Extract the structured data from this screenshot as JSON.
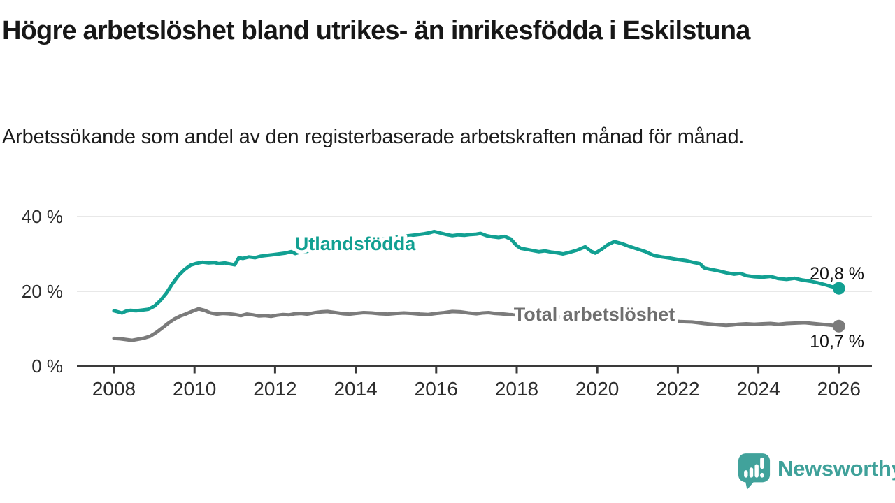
{
  "header": {
    "title": "Högre arbetslöshet bland utrikes- än inrikesfödda i Eskilstuna",
    "subtitle": "Arbetssökande som andel av den registerbaserade arbetskraften månad för månad."
  },
  "footer": {
    "brand": "Newsworthy",
    "brand_color": "#3fa19a",
    "logo_icon": "speech-bubble-bar-chart-exclamation"
  },
  "colors": {
    "foreign_born_line": "#12a092",
    "total_line": "#7b7b7b",
    "total_label": "#6f6f6f",
    "axis": "#3a3a3a",
    "gridline": "#e0e0e0",
    "tick_label": "#2d2d2d",
    "value_label": "#111111"
  },
  "chart_data": {
    "type": "line",
    "title": "Högre arbetslöshet bland utrikes- än inrikesfödda i Eskilstuna",
    "subtitle": "Arbetssökande som andel av den registerbaserade arbetskraften månad för månad.",
    "xlabel": "",
    "ylabel": "",
    "grid": "horizontal",
    "legend_position": "inline-labels",
    "x_axis": {
      "tick_years": [
        2008,
        2010,
        2012,
        2014,
        2016,
        2018,
        2020,
        2022,
        2024,
        2026
      ],
      "tick_labels": [
        "2008",
        "2010",
        "2012",
        "2014",
        "2016",
        "2018",
        "2020",
        "2022",
        "2024",
        "2026"
      ],
      "range": [
        2007.8,
        2026.9
      ]
    },
    "y_axis": {
      "tick_values": [
        0,
        20,
        40
      ],
      "tick_labels": [
        "0 %",
        "20 %",
        "40 %"
      ],
      "range": [
        0,
        42
      ],
      "unit": "%"
    },
    "series": [
      {
        "name": "Utlandsfödda",
        "color": "#12a092",
        "label_color": "#12a092",
        "end_label": "20,8 %",
        "end_value": 20.8,
        "points": [
          [
            2008.0,
            14.8
          ],
          [
            2008.1,
            14.5
          ],
          [
            2008.2,
            14.2
          ],
          [
            2008.3,
            14.7
          ],
          [
            2008.4,
            14.9
          ],
          [
            2008.55,
            14.8
          ],
          [
            2008.7,
            15.0
          ],
          [
            2008.85,
            15.2
          ],
          [
            2009.0,
            16.0
          ],
          [
            2009.15,
            17.5
          ],
          [
            2009.3,
            19.5
          ],
          [
            2009.45,
            22.0
          ],
          [
            2009.6,
            24.2
          ],
          [
            2009.75,
            25.8
          ],
          [
            2009.9,
            27.0
          ],
          [
            2010.05,
            27.5
          ],
          [
            2010.2,
            27.8
          ],
          [
            2010.35,
            27.6
          ],
          [
            2010.5,
            27.7
          ],
          [
            2010.6,
            27.4
          ],
          [
            2010.75,
            27.6
          ],
          [
            2010.9,
            27.3
          ],
          [
            2011.0,
            27.1
          ],
          [
            2011.1,
            29.0
          ],
          [
            2011.2,
            28.8
          ],
          [
            2011.35,
            29.2
          ],
          [
            2011.5,
            29.0
          ],
          [
            2011.65,
            29.4
          ],
          [
            2011.8,
            29.6
          ],
          [
            2011.95,
            29.8
          ],
          [
            2012.1,
            30.0
          ],
          [
            2012.25,
            30.2
          ],
          [
            2012.4,
            30.6
          ],
          [
            2012.5,
            30.1
          ],
          [
            2012.6,
            30.4
          ],
          [
            2012.8,
            30.7
          ],
          [
            2013.0,
            31.2
          ],
          [
            2013.25,
            31.6
          ],
          [
            2013.5,
            32.0
          ],
          [
            2013.75,
            32.4
          ],
          [
            2014.0,
            32.9
          ],
          [
            2014.25,
            33.3
          ],
          [
            2014.5,
            33.7
          ],
          [
            2014.75,
            34.1
          ],
          [
            2015.0,
            34.5
          ],
          [
            2015.25,
            34.8
          ],
          [
            2015.5,
            35.1
          ],
          [
            2015.7,
            35.4
          ],
          [
            2015.85,
            35.7
          ],
          [
            2015.95,
            36.0
          ],
          [
            2016.1,
            35.6
          ],
          [
            2016.25,
            35.2
          ],
          [
            2016.4,
            34.9
          ],
          [
            2016.55,
            35.1
          ],
          [
            2016.7,
            35.0
          ],
          [
            2016.85,
            35.2
          ],
          [
            2017.0,
            35.3
          ],
          [
            2017.1,
            35.5
          ],
          [
            2017.25,
            34.9
          ],
          [
            2017.4,
            34.6
          ],
          [
            2017.55,
            34.4
          ],
          [
            2017.7,
            34.7
          ],
          [
            2017.85,
            34.0
          ],
          [
            2018.0,
            32.2
          ],
          [
            2018.1,
            31.5
          ],
          [
            2018.25,
            31.2
          ],
          [
            2018.4,
            30.9
          ],
          [
            2018.55,
            30.6
          ],
          [
            2018.7,
            30.8
          ],
          [
            2018.85,
            30.5
          ],
          [
            2019.0,
            30.3
          ],
          [
            2019.15,
            30.0
          ],
          [
            2019.3,
            30.4
          ],
          [
            2019.5,
            31.0
          ],
          [
            2019.7,
            31.9
          ],
          [
            2019.85,
            30.7
          ],
          [
            2019.95,
            30.2
          ],
          [
            2020.1,
            31.2
          ],
          [
            2020.25,
            32.4
          ],
          [
            2020.42,
            33.3
          ],
          [
            2020.6,
            32.8
          ],
          [
            2020.8,
            32.0
          ],
          [
            2021.0,
            31.3
          ],
          [
            2021.2,
            30.6
          ],
          [
            2021.4,
            29.6
          ],
          [
            2021.6,
            29.2
          ],
          [
            2021.8,
            28.9
          ],
          [
            2022.0,
            28.5
          ],
          [
            2022.2,
            28.2
          ],
          [
            2022.4,
            27.7
          ],
          [
            2022.55,
            27.4
          ],
          [
            2022.65,
            26.3
          ],
          [
            2022.8,
            25.9
          ],
          [
            2023.0,
            25.5
          ],
          [
            2023.2,
            25.0
          ],
          [
            2023.4,
            24.6
          ],
          [
            2023.55,
            24.8
          ],
          [
            2023.7,
            24.2
          ],
          [
            2023.9,
            23.9
          ],
          [
            2024.1,
            23.8
          ],
          [
            2024.3,
            24.0
          ],
          [
            2024.5,
            23.4
          ],
          [
            2024.7,
            23.2
          ],
          [
            2024.9,
            23.5
          ],
          [
            2025.1,
            23.0
          ],
          [
            2025.3,
            22.7
          ],
          [
            2025.5,
            22.2
          ],
          [
            2025.65,
            21.8
          ],
          [
            2025.8,
            21.3
          ],
          [
            2026.0,
            20.8
          ]
        ]
      },
      {
        "name": "Total arbetslöshet",
        "color": "#7b7b7b",
        "label_color": "#6f6f6f",
        "end_label": "10,7 %",
        "end_value": 10.7,
        "points": [
          [
            2008.0,
            7.4
          ],
          [
            2008.15,
            7.3
          ],
          [
            2008.3,
            7.1
          ],
          [
            2008.45,
            6.9
          ],
          [
            2008.6,
            7.2
          ],
          [
            2008.75,
            7.5
          ],
          [
            2008.9,
            8.0
          ],
          [
            2009.05,
            9.0
          ],
          [
            2009.2,
            10.2
          ],
          [
            2009.35,
            11.5
          ],
          [
            2009.5,
            12.6
          ],
          [
            2009.65,
            13.4
          ],
          [
            2009.8,
            14.0
          ],
          [
            2009.95,
            14.7
          ],
          [
            2010.1,
            15.3
          ],
          [
            2010.25,
            14.9
          ],
          [
            2010.4,
            14.2
          ],
          [
            2010.55,
            13.9
          ],
          [
            2010.7,
            14.1
          ],
          [
            2010.85,
            14.0
          ],
          [
            2011.0,
            13.8
          ],
          [
            2011.15,
            13.5
          ],
          [
            2011.3,
            13.9
          ],
          [
            2011.45,
            13.7
          ],
          [
            2011.6,
            13.4
          ],
          [
            2011.75,
            13.5
          ],
          [
            2011.9,
            13.3
          ],
          [
            2012.05,
            13.6
          ],
          [
            2012.2,
            13.8
          ],
          [
            2012.35,
            13.7
          ],
          [
            2012.5,
            14.0
          ],
          [
            2012.65,
            14.1
          ],
          [
            2012.8,
            13.9
          ],
          [
            2013.0,
            14.3
          ],
          [
            2013.15,
            14.5
          ],
          [
            2013.3,
            14.6
          ],
          [
            2013.5,
            14.3
          ],
          [
            2013.7,
            14.0
          ],
          [
            2013.85,
            13.9
          ],
          [
            2014.0,
            14.1
          ],
          [
            2014.2,
            14.3
          ],
          [
            2014.4,
            14.2
          ],
          [
            2014.6,
            14.0
          ],
          [
            2014.8,
            13.9
          ],
          [
            2015.0,
            14.1
          ],
          [
            2015.2,
            14.2
          ],
          [
            2015.4,
            14.1
          ],
          [
            2015.6,
            13.9
          ],
          [
            2015.8,
            13.8
          ],
          [
            2016.0,
            14.1
          ],
          [
            2016.2,
            14.3
          ],
          [
            2016.4,
            14.6
          ],
          [
            2016.6,
            14.5
          ],
          [
            2016.8,
            14.2
          ],
          [
            2017.0,
            14.0
          ],
          [
            2017.15,
            14.2
          ],
          [
            2017.3,
            14.3
          ],
          [
            2017.45,
            14.1
          ],
          [
            2017.6,
            14.0
          ],
          [
            2017.8,
            13.8
          ],
          [
            2018.0,
            13.7
          ],
          [
            2018.25,
            13.5
          ],
          [
            2018.5,
            13.4
          ],
          [
            2018.75,
            13.2
          ],
          [
            2019.0,
            13.1
          ],
          [
            2019.25,
            12.9
          ],
          [
            2019.5,
            12.8
          ],
          [
            2019.75,
            12.9
          ],
          [
            2020.0,
            13.1
          ],
          [
            2020.25,
            13.4
          ],
          [
            2020.45,
            13.6
          ],
          [
            2020.65,
            13.4
          ],
          [
            2020.85,
            13.2
          ],
          [
            2021.05,
            12.9
          ],
          [
            2021.3,
            12.6
          ],
          [
            2021.55,
            12.3
          ],
          [
            2021.8,
            12.1
          ],
          [
            2022.05,
            11.9
          ],
          [
            2022.2,
            11.85
          ],
          [
            2022.35,
            11.8
          ],
          [
            2022.5,
            11.6
          ],
          [
            2022.65,
            11.4
          ],
          [
            2022.85,
            11.2
          ],
          [
            2023.05,
            11.0
          ],
          [
            2023.2,
            10.9
          ],
          [
            2023.35,
            11.0
          ],
          [
            2023.5,
            11.2
          ],
          [
            2023.7,
            11.3
          ],
          [
            2023.9,
            11.2
          ],
          [
            2024.1,
            11.3
          ],
          [
            2024.3,
            11.4
          ],
          [
            2024.5,
            11.2
          ],
          [
            2024.7,
            11.4
          ],
          [
            2024.9,
            11.5
          ],
          [
            2025.15,
            11.6
          ],
          [
            2025.35,
            11.4
          ],
          [
            2025.55,
            11.2
          ],
          [
            2025.75,
            11.0
          ],
          [
            2026.0,
            10.7
          ]
        ]
      }
    ]
  }
}
